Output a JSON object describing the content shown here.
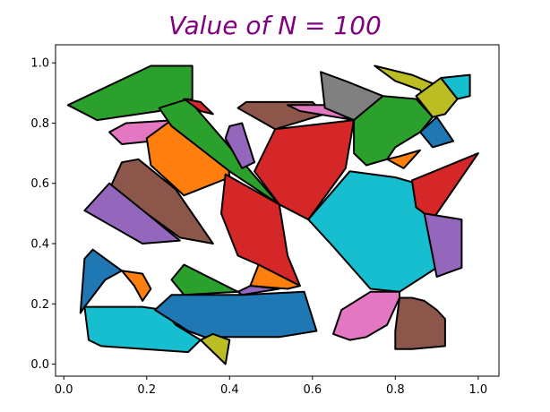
{
  "chart_data": {
    "type": "polygon-map",
    "title": "Value of N = 100",
    "title_color": "#800080",
    "xlabel": "",
    "ylabel": "",
    "xlim": [
      -0.02,
      1.05
    ],
    "ylim": [
      -0.04,
      1.06
    ],
    "xticks": [
      "0.0",
      "0.2",
      "0.4",
      "0.6",
      "0.8",
      "1.0"
    ],
    "yticks": [
      "0.0",
      "0.2",
      "0.4",
      "0.6",
      "0.8",
      "1.0"
    ],
    "grid": false,
    "polygons": [
      {
        "color": "#2ca02c",
        "points": [
          [
            0.01,
            0.86
          ],
          [
            0.21,
            0.99
          ],
          [
            0.31,
            0.99
          ],
          [
            0.31,
            0.88
          ],
          [
            0.23,
            0.84
          ],
          [
            0.08,
            0.81
          ]
        ]
      },
      {
        "color": "#e377c2",
        "points": [
          [
            0.11,
            0.77
          ],
          [
            0.15,
            0.8
          ],
          [
            0.27,
            0.81
          ],
          [
            0.21,
            0.74
          ],
          [
            0.14,
            0.73
          ]
        ]
      },
      {
        "color": "#ff7f0e",
        "points": [
          [
            0.2,
            0.75
          ],
          [
            0.26,
            0.81
          ],
          [
            0.39,
            0.74
          ],
          [
            0.4,
            0.62
          ],
          [
            0.29,
            0.56
          ],
          [
            0.21,
            0.66
          ]
        ]
      },
      {
        "color": "#2ca02c",
        "points": [
          [
            0.23,
            0.85
          ],
          [
            0.3,
            0.88
          ],
          [
            0.52,
            0.53
          ],
          [
            0.4,
            0.64
          ],
          [
            0.26,
            0.79
          ]
        ]
      },
      {
        "color": "#d62728",
        "points": [
          [
            0.29,
            0.88
          ],
          [
            0.33,
            0.87
          ],
          [
            0.36,
            0.83
          ],
          [
            0.33,
            0.84
          ]
        ]
      },
      {
        "color": "#9467bd",
        "points": [
          [
            0.4,
            0.79
          ],
          [
            0.43,
            0.8
          ],
          [
            0.46,
            0.67
          ],
          [
            0.43,
            0.65
          ],
          [
            0.39,
            0.75
          ]
        ]
      },
      {
        "color": "#8c564b",
        "points": [
          [
            0.42,
            0.85
          ],
          [
            0.44,
            0.87
          ],
          [
            0.6,
            0.87
          ],
          [
            0.63,
            0.83
          ],
          [
            0.51,
            0.78
          ]
        ]
      },
      {
        "color": "#e377c2",
        "points": [
          [
            0.54,
            0.86
          ],
          [
            0.63,
            0.86
          ],
          [
            0.68,
            0.82
          ],
          [
            0.7,
            0.81
          ],
          [
            0.57,
            0.84
          ]
        ]
      },
      {
        "color": "#808080",
        "points": [
          [
            0.62,
            0.97
          ],
          [
            0.68,
            0.94
          ],
          [
            0.77,
            0.89
          ],
          [
            0.7,
            0.81
          ],
          [
            0.63,
            0.85
          ]
        ]
      },
      {
        "color": "#2ca02c",
        "points": [
          [
            0.7,
            0.81
          ],
          [
            0.77,
            0.89
          ],
          [
            0.85,
            0.88
          ],
          [
            0.89,
            0.82
          ],
          [
            0.86,
            0.77
          ],
          [
            0.8,
            0.72
          ],
          [
            0.78,
            0.68
          ],
          [
            0.73,
            0.66
          ],
          [
            0.7,
            0.7
          ]
        ]
      },
      {
        "color": "#bcbd22",
        "points": [
          [
            0.75,
            0.99
          ],
          [
            0.84,
            0.96
          ],
          [
            0.91,
            0.92
          ],
          [
            0.87,
            0.88
          ],
          [
            0.86,
            0.91
          ],
          [
            0.8,
            0.94
          ]
        ]
      },
      {
        "color": "#bcbd22",
        "points": [
          [
            0.85,
            0.89
          ],
          [
            0.91,
            0.95
          ],
          [
            0.95,
            0.88
          ],
          [
            0.92,
            0.83
          ],
          [
            0.89,
            0.82
          ]
        ]
      },
      {
        "color": "#17becf",
        "points": [
          [
            0.91,
            0.95
          ],
          [
            0.98,
            0.96
          ],
          [
            0.98,
            0.89
          ],
          [
            0.95,
            0.88
          ]
        ]
      },
      {
        "color": "#1f77b4",
        "points": [
          [
            0.86,
            0.77
          ],
          [
            0.9,
            0.82
          ],
          [
            0.94,
            0.74
          ],
          [
            0.89,
            0.72
          ]
        ]
      },
      {
        "color": "#ff7f0e",
        "points": [
          [
            0.78,
            0.68
          ],
          [
            0.82,
            0.65
          ],
          [
            0.86,
            0.71
          ],
          [
            0.81,
            0.69
          ]
        ]
      },
      {
        "color": "#d62728",
        "points": [
          [
            0.51,
            0.78
          ],
          [
            0.7,
            0.81
          ],
          [
            0.68,
            0.65
          ],
          [
            0.59,
            0.48
          ],
          [
            0.52,
            0.53
          ],
          [
            0.46,
            0.64
          ]
        ]
      },
      {
        "color": "#17becf",
        "points": [
          [
            0.69,
            0.64
          ],
          [
            0.8,
            0.62
          ],
          [
            0.85,
            0.6
          ],
          [
            0.87,
            0.5
          ],
          [
            0.9,
            0.32
          ],
          [
            0.81,
            0.24
          ],
          [
            0.74,
            0.25
          ],
          [
            0.65,
            0.39
          ],
          [
            0.59,
            0.48
          ]
        ]
      },
      {
        "color": "#d62728",
        "points": [
          [
            0.84,
            0.61
          ],
          [
            1.0,
            0.7
          ],
          [
            0.89,
            0.48
          ],
          [
            0.85,
            0.52
          ]
        ]
      },
      {
        "color": "#9467bd",
        "points": [
          [
            0.87,
            0.5
          ],
          [
            0.96,
            0.48
          ],
          [
            0.96,
            0.32
          ],
          [
            0.9,
            0.29
          ]
        ]
      },
      {
        "color": "#8c564b",
        "points": [
          [
            0.14,
            0.67
          ],
          [
            0.18,
            0.68
          ],
          [
            0.27,
            0.58
          ],
          [
            0.36,
            0.4
          ],
          [
            0.28,
            0.42
          ],
          [
            0.2,
            0.5
          ],
          [
            0.11,
            0.58
          ]
        ]
      },
      {
        "color": "#9467bd",
        "points": [
          [
            0.05,
            0.51
          ],
          [
            0.11,
            0.6
          ],
          [
            0.2,
            0.5
          ],
          [
            0.28,
            0.41
          ],
          [
            0.19,
            0.4
          ]
        ]
      },
      {
        "color": "#d62728",
        "points": [
          [
            0.39,
            0.63
          ],
          [
            0.52,
            0.53
          ],
          [
            0.54,
            0.36
          ],
          [
            0.57,
            0.26
          ],
          [
            0.47,
            0.33
          ],
          [
            0.42,
            0.36
          ],
          [
            0.38,
            0.5
          ]
        ]
      },
      {
        "color": "#ff7f0e",
        "points": [
          [
            0.47,
            0.33
          ],
          [
            0.57,
            0.26
          ],
          [
            0.54,
            0.25
          ],
          [
            0.45,
            0.26
          ]
        ]
      },
      {
        "color": "#2ca02c",
        "points": [
          [
            0.26,
            0.28
          ],
          [
            0.29,
            0.33
          ],
          [
            0.42,
            0.24
          ],
          [
            0.29,
            0.23
          ]
        ]
      },
      {
        "color": "#9467bd",
        "points": [
          [
            0.42,
            0.24
          ],
          [
            0.45,
            0.26
          ],
          [
            0.52,
            0.25
          ],
          [
            0.43,
            0.23
          ]
        ]
      },
      {
        "color": "#1f77b4",
        "points": [
          [
            0.05,
            0.35
          ],
          [
            0.07,
            0.38
          ],
          [
            0.14,
            0.31
          ],
          [
            0.1,
            0.28
          ],
          [
            0.05,
            0.19
          ],
          [
            0.04,
            0.17
          ]
        ]
      },
      {
        "color": "#ff7f0e",
        "points": [
          [
            0.14,
            0.31
          ],
          [
            0.19,
            0.3
          ],
          [
            0.21,
            0.25
          ],
          [
            0.19,
            0.21
          ],
          [
            0.17,
            0.26
          ]
        ]
      },
      {
        "color": "#17becf",
        "points": [
          [
            0.05,
            0.19
          ],
          [
            0.06,
            0.08
          ],
          [
            0.09,
            0.06
          ],
          [
            0.3,
            0.04
          ],
          [
            0.33,
            0.08
          ],
          [
            0.27,
            0.13
          ],
          [
            0.24,
            0.18
          ],
          [
            0.19,
            0.19
          ],
          [
            0.17,
            0.19
          ]
        ]
      },
      {
        "color": "#1f77b4",
        "points": [
          [
            0.22,
            0.18
          ],
          [
            0.26,
            0.23
          ],
          [
            0.43,
            0.23
          ],
          [
            0.58,
            0.24
          ],
          [
            0.61,
            0.11
          ],
          [
            0.52,
            0.09
          ],
          [
            0.34,
            0.09
          ],
          [
            0.3,
            0.11
          ]
        ]
      },
      {
        "color": "#bcbd22",
        "points": [
          [
            0.33,
            0.08
          ],
          [
            0.39,
            0.0
          ],
          [
            0.4,
            0.08
          ],
          [
            0.36,
            0.1
          ]
        ]
      },
      {
        "color": "#e377c2",
        "points": [
          [
            0.67,
            0.18
          ],
          [
            0.74,
            0.24
          ],
          [
            0.81,
            0.24
          ],
          [
            0.81,
            0.22
          ],
          [
            0.78,
            0.13
          ],
          [
            0.73,
            0.09
          ],
          [
            0.69,
            0.08
          ],
          [
            0.65,
            0.1
          ]
        ]
      },
      {
        "color": "#8c564b",
        "points": [
          [
            0.81,
            0.22
          ],
          [
            0.84,
            0.22
          ],
          [
            0.87,
            0.21
          ],
          [
            0.9,
            0.18
          ],
          [
            0.92,
            0.15
          ],
          [
            0.92,
            0.06
          ],
          [
            0.84,
            0.05
          ],
          [
            0.8,
            0.05
          ],
          [
            0.8,
            0.11
          ]
        ]
      }
    ]
  }
}
